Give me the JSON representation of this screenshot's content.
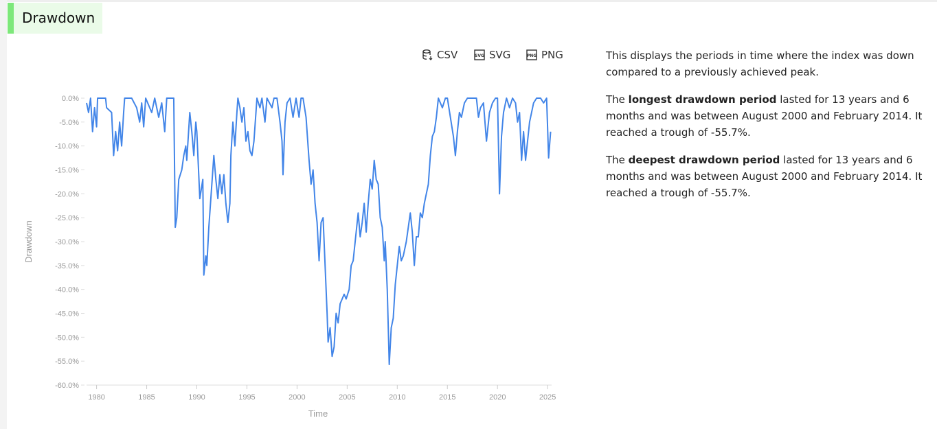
{
  "header": {
    "title": "Drawdown"
  },
  "toolbar": {
    "buttons": [
      "CSV",
      "SVG",
      "PNG"
    ]
  },
  "description": {
    "intro": "This displays the periods in time where the index was down compared to a previously achieved peak.",
    "longest": [
      "The ",
      "longest drawdown period",
      " lasted for 13 years and 6 months and was between August 2000 and February 2014. It reached a trough of -55.7%."
    ],
    "deepest": [
      "The ",
      "deepest drawdown period",
      " lasted for 13 years and 6 months and was between August 2000 and February 2014. It reached a trough of -55.7%."
    ]
  },
  "chart_data": {
    "type": "line",
    "xlabel": "Time",
    "ylabel": "Drawdown",
    "color": "#4285e8",
    "xlim": [
      1979,
      2025.4
    ],
    "xticks": [
      1980,
      1985,
      1990,
      1995,
      2000,
      2005,
      2010,
      2015,
      2020,
      2025
    ],
    "ylim": [
      -60,
      0
    ],
    "yticks": [
      {
        "value": -60,
        "label": "-60.0%"
      },
      {
        "value": -55,
        "label": "-55.0%"
      },
      {
        "value": -50,
        "label": "-50.0%"
      },
      {
        "value": -45,
        "label": "-45.0%"
      },
      {
        "value": -40,
        "label": "-40.0%"
      },
      {
        "value": -35,
        "label": "-35.0%"
      },
      {
        "value": -30,
        "label": "-30.0%"
      },
      {
        "value": -25,
        "label": "-25.0%"
      },
      {
        "value": -20,
        "label": "-20.0%"
      },
      {
        "value": -15,
        "label": "-15.0%"
      },
      {
        "value": -10,
        "label": "-10.0%"
      },
      {
        "value": -5,
        "label": "-5.0%"
      },
      {
        "value": 0,
        "label": "0.0%"
      }
    ],
    "x": [
      1979.0,
      1979.2,
      1979.4,
      1979.6,
      1979.8,
      1980.0,
      1980.1,
      1980.5,
      1980.9,
      1981.0,
      1981.5,
      1981.7,
      1981.9,
      1982.1,
      1982.3,
      1982.5,
      1982.7,
      1982.8,
      1983.5,
      1984.0,
      1984.3,
      1984.5,
      1984.7,
      1984.9,
      1985.5,
      1985.8,
      1986.2,
      1986.5,
      1986.8,
      1987.0,
      1987.7,
      1987.85,
      1988.0,
      1988.2,
      1988.5,
      1988.7,
      1988.9,
      1989.0,
      1989.3,
      1989.5,
      1989.7,
      1989.9,
      1990.0,
      1990.3,
      1990.6,
      1990.7,
      1990.9,
      1991.0,
      1991.2,
      1991.5,
      1991.7,
      1991.9,
      1992.1,
      1992.3,
      1992.5,
      1992.7,
      1992.9,
      1993.1,
      1993.3,
      1993.4,
      1993.6,
      1993.8,
      1994.0,
      1994.1,
      1994.3,
      1994.5,
      1994.7,
      1994.9,
      1995.1,
      1995.3,
      1995.5,
      1995.7,
      1995.9,
      1996.0,
      1996.3,
      1996.5,
      1996.8,
      1997.0,
      1997.5,
      1997.7,
      1998.0,
      1998.3,
      1998.5,
      1998.6,
      1998.8,
      1999.0,
      1999.3,
      1999.6,
      1999.9,
      2000.2,
      2000.4,
      2000.6,
      2000.9,
      2001.2,
      2001.4,
      2001.6,
      2001.8,
      2002.0,
      2002.2,
      2002.4,
      2002.6,
      2002.8,
      2003.0,
      2003.1,
      2003.3,
      2003.5,
      2003.7,
      2003.9,
      2004.1,
      2004.3,
      2004.5,
      2004.7,
      2004.9,
      2005.2,
      2005.4,
      2005.6,
      2005.9,
      2006.1,
      2006.3,
      2006.5,
      2006.7,
      2006.9,
      2007.1,
      2007.3,
      2007.5,
      2007.7,
      2007.9,
      2008.1,
      2008.3,
      2008.5,
      2008.7,
      2008.8,
      2009.0,
      2009.2,
      2009.4,
      2009.6,
      2009.8,
      2010.0,
      2010.2,
      2010.4,
      2010.6,
      2010.9,
      2011.1,
      2011.3,
      2011.5,
      2011.7,
      2011.9,
      2012.1,
      2012.3,
      2012.5,
      2012.7,
      2012.9,
      2013.1,
      2013.3,
      2013.5,
      2013.7,
      2013.9,
      2014.1,
      2014.5,
      2014.8,
      2015.0,
      2015.3,
      2015.6,
      2015.8,
      2016.0,
      2016.2,
      2016.4,
      2016.7,
      2017.0,
      2017.5,
      2017.9,
      2018.1,
      2018.3,
      2018.6,
      2018.9,
      2019.2,
      2019.5,
      2019.8,
      2020.0,
      2020.2,
      2020.4,
      2020.6,
      2020.9,
      2021.2,
      2021.5,
      2021.8,
      2022.0,
      2022.2,
      2022.4,
      2022.6,
      2022.8,
      2023.0,
      2023.2,
      2023.4,
      2023.6,
      2023.9,
      2024.3,
      2024.6,
      2024.9,
      2025.1,
      2025.3
    ],
    "values": [
      -1,
      -3,
      0,
      -7,
      -2,
      -6,
      0,
      0,
      0,
      -2,
      -3,
      -12,
      -7,
      -11,
      -5,
      -10,
      -3,
      0,
      0,
      -2,
      -5,
      -1,
      -6,
      0,
      -3,
      0,
      -4,
      -1,
      -7,
      0,
      0,
      -27,
      -25,
      -17,
      -15,
      -12,
      -10,
      -13,
      -3,
      -7,
      -12,
      -5,
      -7,
      -21,
      -17,
      -37,
      -33,
      -35,
      -27,
      -18,
      -12,
      -17,
      -21,
      -16,
      -20,
      -16,
      -22,
      -26,
      -22,
      -12,
      -5,
      -10,
      -3,
      0,
      -2,
      -5,
      -2,
      -9,
      -7,
      -11,
      -12,
      -9,
      -3,
      0,
      -2,
      0,
      -5,
      0,
      -2,
      0,
      0,
      -5,
      -9,
      -16,
      -5,
      -1,
      0,
      -4,
      0,
      -4,
      0,
      0,
      -4,
      -13,
      -18,
      -15,
      -22,
      -26,
      -34,
      -26,
      -25,
      -35,
      -45,
      -51,
      -48,
      -54,
      -52,
      -45,
      -47,
      -43,
      -42,
      -41,
      -42,
      -40,
      -35,
      -34,
      -28,
      -24,
      -29,
      -26,
      -22,
      -28,
      -22,
      -17,
      -19,
      -13,
      -17,
      -18,
      -25,
      -27,
      -34,
      -30,
      -40,
      -55.7,
      -48,
      -46,
      -39,
      -35,
      -31,
      -34,
      -33,
      -30,
      -27,
      -24,
      -28,
      -35,
      -29,
      -29,
      -24,
      -25,
      -22,
      -20,
      -18,
      -12,
      -8,
      -7,
      -4,
      0,
      -2,
      0,
      0,
      -4,
      -8,
      -12,
      -7,
      -3,
      -4,
      -1,
      0,
      0,
      0,
      -4,
      -2,
      -1,
      -9,
      -3,
      -1,
      0,
      0,
      -20,
      -8,
      -3,
      0,
      -2,
      0,
      -1,
      -5,
      -3,
      -13,
      -7,
      -13,
      -9,
      -5,
      -3,
      -1,
      0,
      0,
      -1,
      0,
      -12.5,
      -7
    ]
  }
}
